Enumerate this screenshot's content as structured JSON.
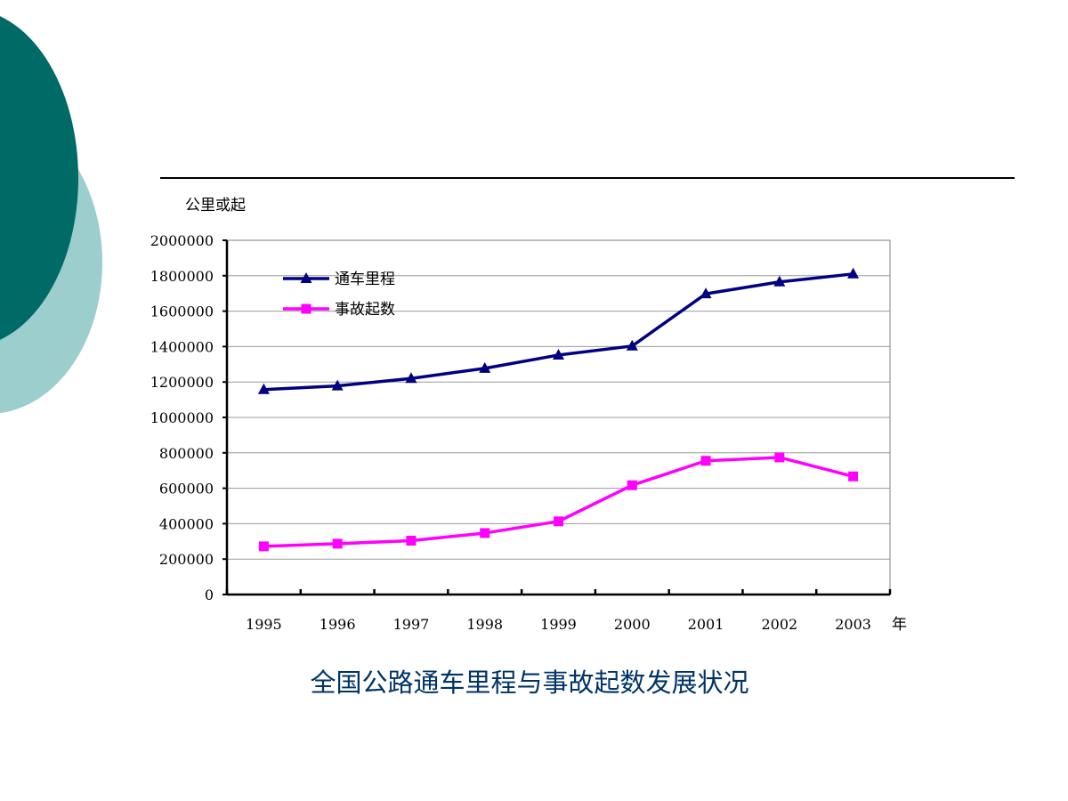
{
  "slide": {
    "caption": "全国公路通车里程与事故起数发展状况",
    "colors": {
      "circle_dark": "#006a66",
      "circle_light": "#9ccece",
      "caption": "#003366"
    }
  },
  "chart_data": {
    "type": "line",
    "title": "",
    "ylabel": "公里或起",
    "xlabel": "年",
    "categories": [
      "1995",
      "1996",
      "1997",
      "1998",
      "1999",
      "2000",
      "2001",
      "2002",
      "2003"
    ],
    "ylim": [
      0,
      2000000
    ],
    "yticks": [
      0,
      200000,
      400000,
      600000,
      800000,
      1000000,
      1200000,
      1400000,
      1600000,
      1800000,
      2000000
    ],
    "grid": true,
    "legend_position": "top-left",
    "series": [
      {
        "name": "通车里程",
        "color": "#000080",
        "marker": "triangle",
        "values": [
          1157000,
          1178000,
          1220000,
          1277000,
          1352000,
          1403000,
          1698000,
          1765000,
          1810000
        ]
      },
      {
        "name": "事故起数",
        "color": "#ff00ff",
        "marker": "square",
        "values": [
          272000,
          287000,
          304000,
          347000,
          413000,
          617000,
          755000,
          774000,
          667000
        ]
      }
    ]
  }
}
